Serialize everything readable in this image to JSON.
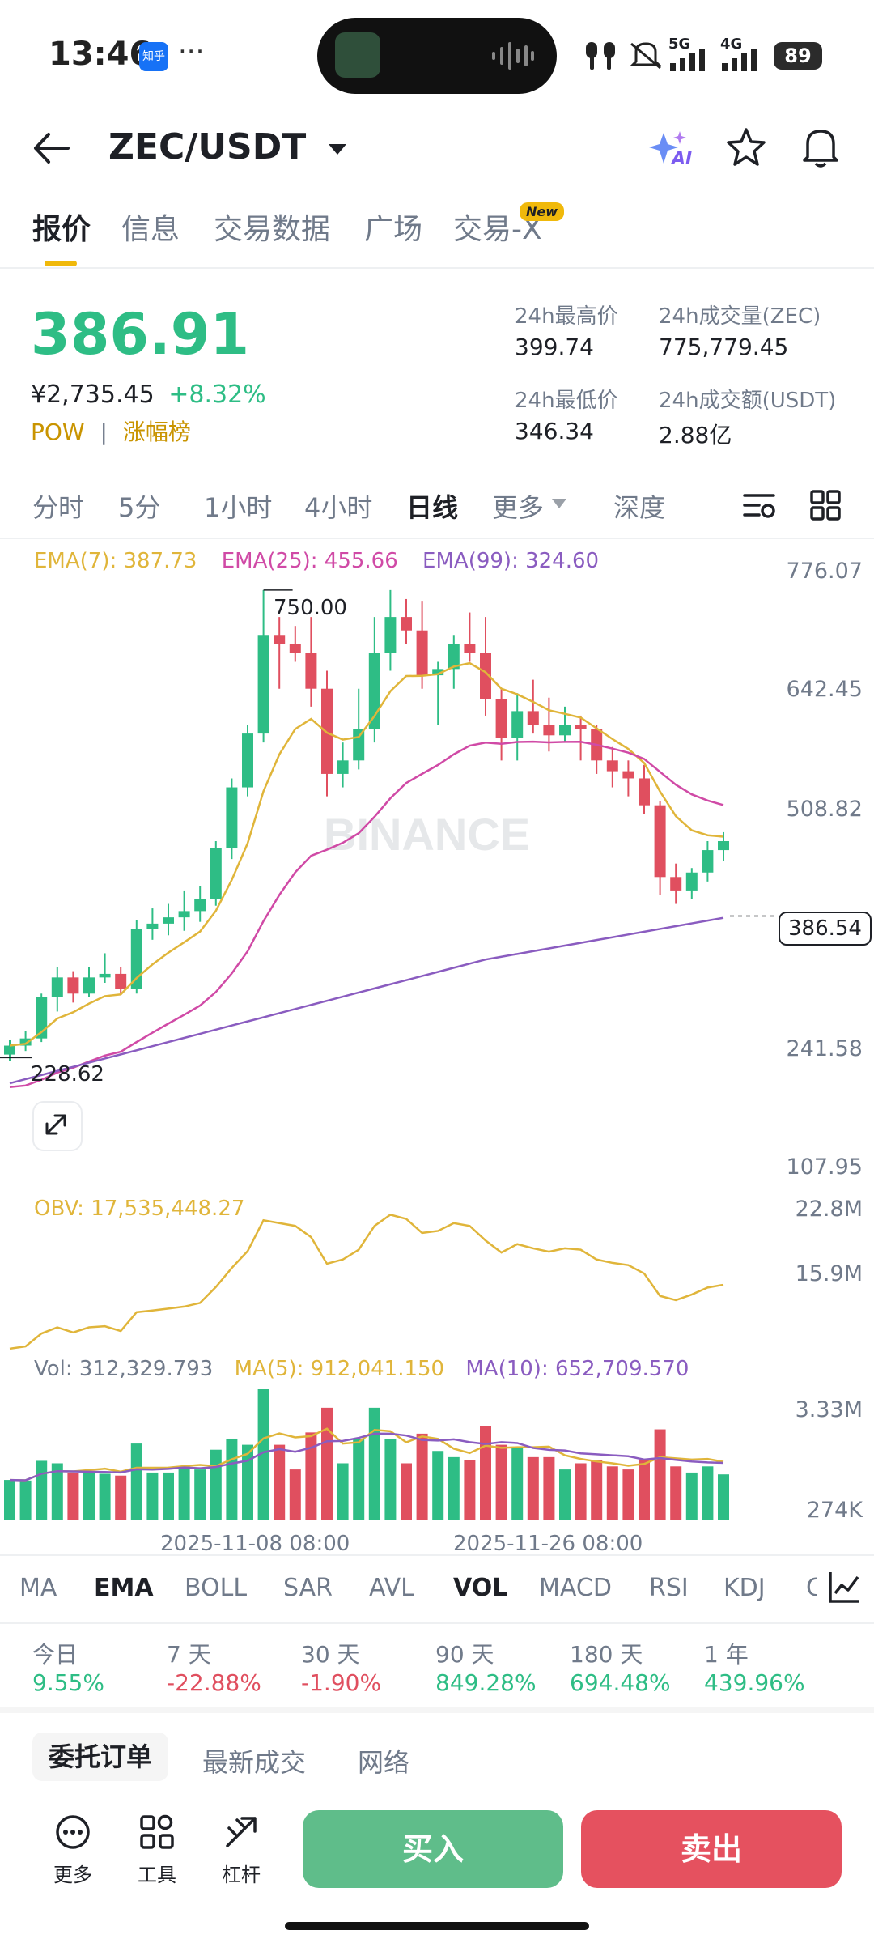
{
  "status": {
    "time": "13:46",
    "app_badge": "知乎",
    "dots": "···",
    "battery": "89",
    "net1": "5G",
    "net2": "4G"
  },
  "header": {
    "pair": "ZEC/USDT",
    "ai_label": "AI"
  },
  "tabs": [
    {
      "label": "报价"
    },
    {
      "label": "信息"
    },
    {
      "label": "交易数据"
    },
    {
      "label": "广场"
    },
    {
      "label": "交易-X",
      "badge": "New"
    }
  ],
  "ticker": {
    "last": "386.91",
    "cny": "¥2,735.45",
    "change": "+8.32%",
    "tag": "POW",
    "rank": "涨幅榜",
    "high_label": "24h最高价",
    "high": "399.74",
    "low_label": "24h最低价",
    "low": "346.34",
    "vol_label": "24h成交量(ZEC)",
    "vol": "775,779.45",
    "amt_label": "24h成交额(USDT)",
    "amt": "2.88亿"
  },
  "intervals": [
    "分时",
    "5分",
    "1小时",
    "4小时",
    "日线",
    "更多",
    "深度"
  ],
  "colors": {
    "up": "#2ebd85",
    "down": "#e04f5f",
    "ema7": "#e0b53a",
    "ema25": "#d04aa6",
    "ema99": "#8a5cc0"
  },
  "chart_data": {
    "type": "candlestick",
    "ema_legend": {
      "ema7": "EMA(7): 387.73",
      "ema25": "EMA(25): 455.66",
      "ema99": "EMA(99): 324.60"
    },
    "price_ticks": [
      "776.07",
      "642.45",
      "508.82",
      "386.54",
      "241.58",
      "107.95"
    ],
    "price_axis": {
      "min": 107.95,
      "max": 776.07
    },
    "current_price": "386.54",
    "high_mark": "750.00",
    "low_mark": "228.62",
    "watermark": "BINANCE",
    "candles": [
      [
        232,
        248,
        225,
        242
      ],
      [
        242,
        258,
        236,
        250
      ],
      [
        250,
        300,
        246,
        296
      ],
      [
        296,
        330,
        280,
        318
      ],
      [
        318,
        325,
        290,
        300
      ],
      [
        300,
        330,
        296,
        318
      ],
      [
        318,
        345,
        312,
        322
      ],
      [
        322,
        330,
        300,
        305
      ],
      [
        305,
        382,
        300,
        372
      ],
      [
        372,
        395,
        360,
        378
      ],
      [
        378,
        400,
        365,
        385
      ],
      [
        385,
        415,
        370,
        392
      ],
      [
        392,
        420,
        380,
        405
      ],
      [
        405,
        470,
        398,
        462
      ],
      [
        462,
        540,
        450,
        530
      ],
      [
        530,
        600,
        520,
        590
      ],
      [
        590,
        750,
        580,
        700
      ],
      [
        700,
        720,
        640,
        690
      ],
      [
        690,
        710,
        670,
        680
      ],
      [
        680,
        720,
        620,
        640
      ],
      [
        640,
        660,
        520,
        545
      ],
      [
        545,
        580,
        530,
        560
      ],
      [
        560,
        640,
        550,
        595
      ],
      [
        595,
        720,
        580,
        680
      ],
      [
        680,
        750,
        660,
        720
      ],
      [
        720,
        740,
        690,
        705
      ],
      [
        705,
        738,
        640,
        655
      ],
      [
        655,
        670,
        600,
        662
      ],
      [
        662,
        700,
        640,
        690
      ],
      [
        690,
        725,
        670,
        680
      ],
      [
        680,
        720,
        610,
        628
      ],
      [
        628,
        640,
        560,
        585
      ],
      [
        585,
        635,
        560,
        615
      ],
      [
        615,
        650,
        590,
        600
      ],
      [
        600,
        630,
        570,
        588
      ],
      [
        588,
        620,
        580,
        600
      ],
      [
        600,
        610,
        560,
        595
      ],
      [
        595,
        600,
        545,
        560
      ],
      [
        560,
        575,
        530,
        548
      ],
      [
        548,
        560,
        520,
        540
      ],
      [
        540,
        555,
        500,
        510
      ],
      [
        510,
        515,
        410,
        430
      ],
      [
        430,
        445,
        400,
        415
      ],
      [
        415,
        440,
        405,
        435
      ],
      [
        435,
        470,
        425,
        460
      ],
      [
        460,
        480,
        448,
        470
      ]
    ],
    "obv": {
      "legend": "OBV: 17,535,448.27",
      "ticks": [
        "22.8M",
        "15.9M"
      ]
    },
    "volume": {
      "legend_vol": "Vol: 312,329.793",
      "legend_ma5": "MA(5): 912,041.150",
      "legend_ma10": "MA(10): 652,709.570",
      "ticks": [
        "3.33M",
        "274K"
      ]
    },
    "dates": [
      "2025-11-08 08:00",
      "2025-11-26 08:00"
    ]
  },
  "indicator_tabs": [
    "MA",
    "EMA",
    "BOLL",
    "SAR",
    "AVL",
    "VOL",
    "MACD",
    "RSI",
    "KDJ",
    "C"
  ],
  "performance": [
    {
      "label": "今日",
      "value": "9.55%",
      "dir": "up"
    },
    {
      "label": "7 天",
      "value": "-22.88%",
      "dir": "down"
    },
    {
      "label": "30 天",
      "value": "-1.90%",
      "dir": "down"
    },
    {
      "label": "90 天",
      "value": "849.28%",
      "dir": "up"
    },
    {
      "label": "180 天",
      "value": "694.48%",
      "dir": "up"
    },
    {
      "label": "1 年",
      "value": "439.96%",
      "dir": "up"
    }
  ],
  "order_tabs": [
    "委托订单",
    "最新成交",
    "网络"
  ],
  "footer": {
    "more": "更多",
    "tools": "工具",
    "leverage": "杠杆",
    "buy": "买入",
    "sell": "卖出"
  }
}
